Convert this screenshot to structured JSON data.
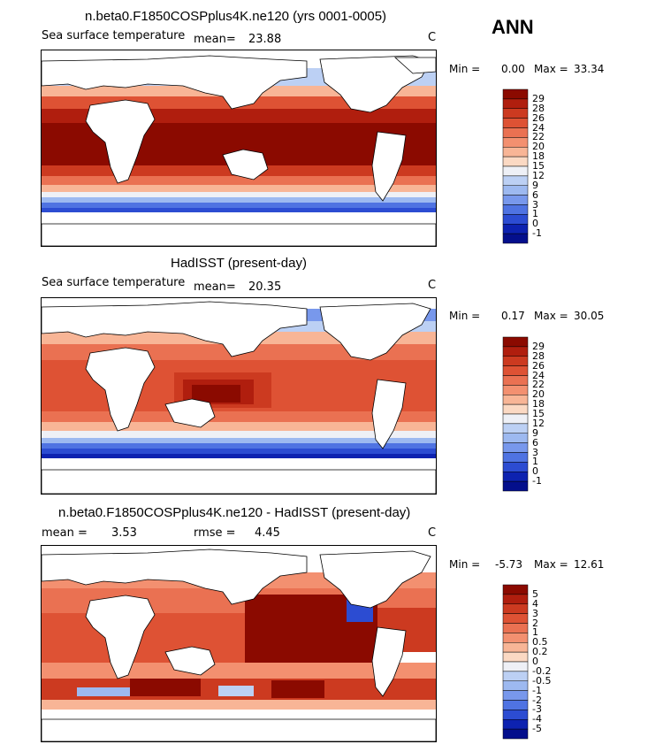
{
  "season": "ANN",
  "chart_data": [
    {
      "type": "heatmap",
      "title": "n.beta0.F1850COSPplus4K.ne120 (yrs 0001-0005)",
      "variable": "Sea surface temperature",
      "units": "C",
      "mean_label": "mean=",
      "mean": "23.88",
      "min_label": "Min =",
      "min": "0.00",
      "max_label": "Max =",
      "max": "33.34",
      "colorbar": {
        "levels": [
          "29",
          "28",
          "26",
          "24",
          "22",
          "20",
          "18",
          "15",
          "12",
          "9",
          "6",
          "3",
          "1",
          "0",
          "-1"
        ],
        "colors": [
          "#8b0a00",
          "#b01e0e",
          "#cc3a20",
          "#de5234",
          "#ea7152",
          "#f39070",
          "#f8b596",
          "#fbd9c3",
          "#eef0f6",
          "#bcd0f4",
          "#9db9f0",
          "#7898ec",
          "#4f73e2",
          "#2c4cd2",
          "#0d22b0",
          "#040f8c"
        ]
      }
    },
    {
      "type": "heatmap",
      "title": "HadISST (present-day)",
      "variable": "Sea surface temperature",
      "units": "C",
      "mean_label": "mean=",
      "mean": "20.35",
      "min_label": "Min =",
      "min": "0.17",
      "max_label": "Max =",
      "max": "30.05",
      "colorbar": {
        "levels": [
          "29",
          "28",
          "26",
          "24",
          "22",
          "20",
          "18",
          "15",
          "12",
          "9",
          "6",
          "3",
          "1",
          "0",
          "-1"
        ],
        "colors": [
          "#8b0a00",
          "#b01e0e",
          "#cc3a20",
          "#de5234",
          "#ea7152",
          "#f39070",
          "#f8b596",
          "#fbd9c3",
          "#eef0f6",
          "#bcd0f4",
          "#9db9f0",
          "#7898ec",
          "#4f73e2",
          "#2c4cd2",
          "#0d22b0",
          "#040f8c"
        ]
      }
    },
    {
      "type": "heatmap",
      "title": "n.beta0.F1850COSPplus4K.ne120 - HadISST (present-day)",
      "units": "C",
      "mean_label": "mean =",
      "mean": "3.53",
      "rmse_label": "rmse =",
      "rmse": "4.45",
      "min_label": "Min =",
      "min": "-5.73",
      "max_label": "Max =",
      "max": "12.61",
      "colorbar": {
        "levels": [
          "5",
          "4",
          "3",
          "2",
          "1",
          "0.5",
          "0.2",
          "0",
          "-0.2",
          "-0.5",
          "-1",
          "-2",
          "-3",
          "-4",
          "-5"
        ],
        "colors": [
          "#8b0a00",
          "#b01e0e",
          "#cc3a20",
          "#de5234",
          "#ea7152",
          "#f39070",
          "#f8b596",
          "#fbd9c3",
          "#eef0f6",
          "#bcd0f4",
          "#9db9f0",
          "#7898ec",
          "#4f73e2",
          "#2c4cd2",
          "#0d22b0",
          "#040f8c"
        ]
      }
    }
  ]
}
